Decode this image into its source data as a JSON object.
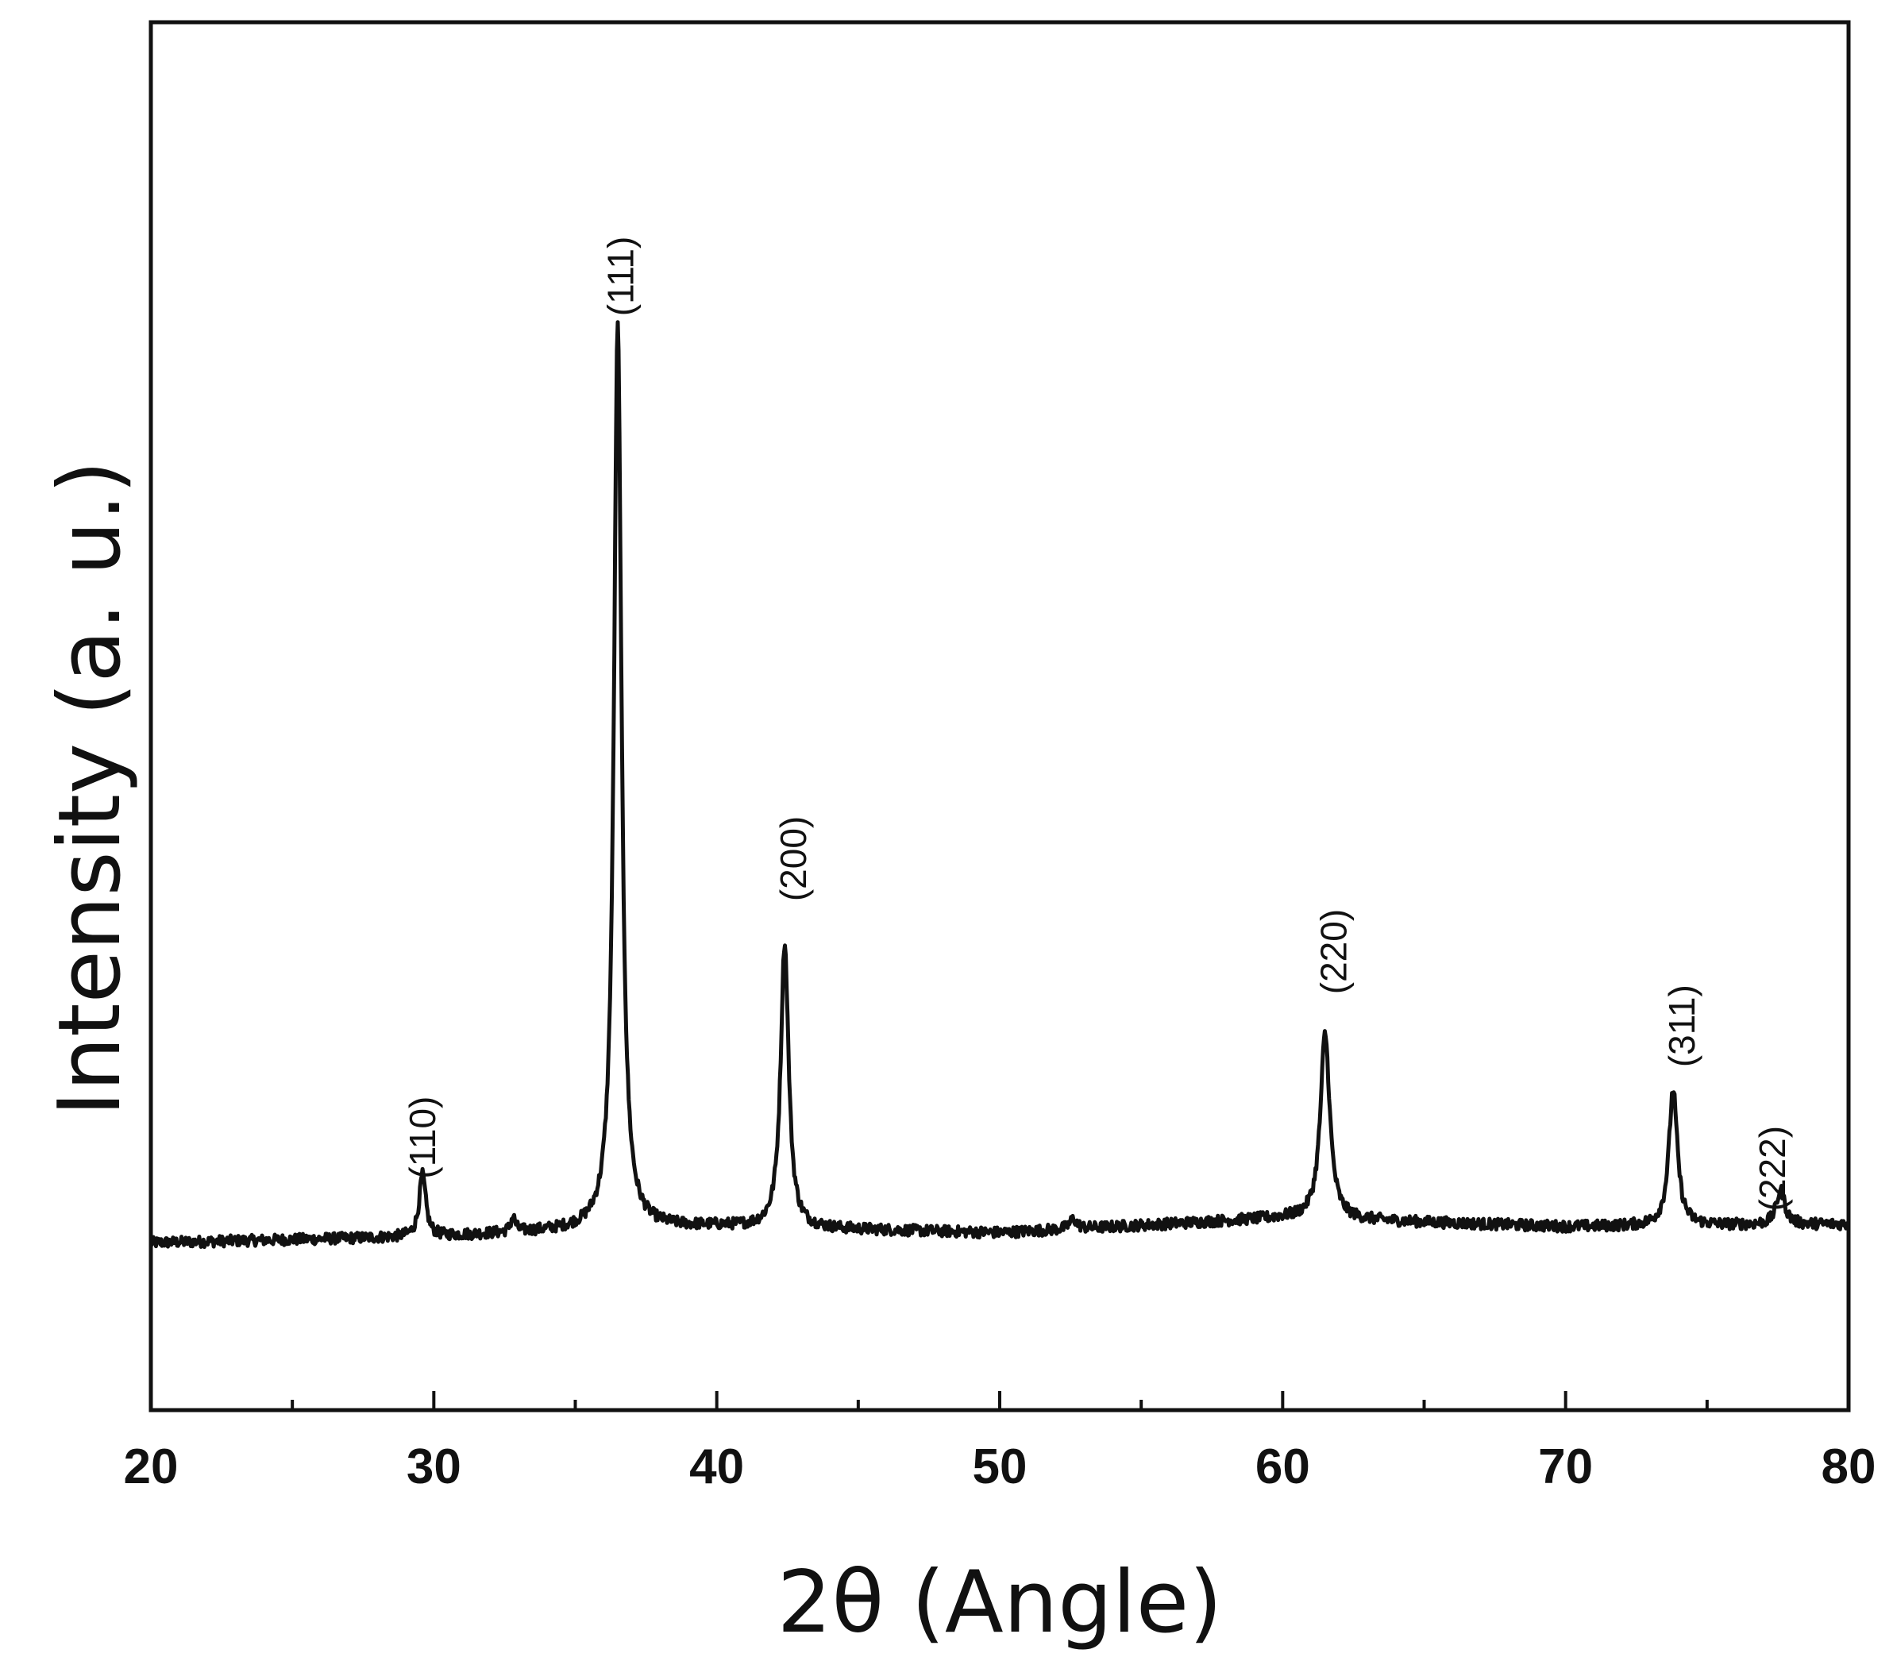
{
  "chart_data": {
    "type": "line",
    "title": "",
    "xlabel": "2θ (Angle)",
    "ylabel": "Intensity (a. u.)",
    "xlim": [
      20,
      80
    ],
    "ylim": [
      -10,
      102
    ],
    "x_ticks": [
      20,
      30,
      40,
      50,
      60,
      70,
      80
    ],
    "x_tick_labels": [
      "20",
      "30",
      "40",
      "50",
      "60",
      "70",
      "80"
    ],
    "x_minor_ticks": [
      25,
      35,
      45,
      55,
      65,
      75
    ],
    "y_ticks": [],
    "grid": false,
    "legend": "none",
    "line_color": "#111111",
    "series": [
      {
        "baseline": [
          [
            20,
            3.5
          ],
          [
            30,
            4.0
          ],
          [
            36,
            4.6
          ],
          [
            40,
            4.8
          ],
          [
            50,
            4.3
          ],
          [
            60,
            5.5
          ],
          [
            70,
            4.8
          ],
          [
            80,
            5.0
          ]
        ],
        "peaks": [
          {
            "x": 29.6,
            "height": 5.0,
            "width": 0.14
          },
          {
            "x": 32.8,
            "height": 1.2,
            "width": 0.1
          },
          {
            "x": 36.5,
            "height": 73.0,
            "width": 0.16
          },
          {
            "x": 42.4,
            "height": 23.0,
            "width": 0.17
          },
          {
            "x": 52.6,
            "height": 0.8,
            "width": 0.15
          },
          {
            "x": 61.5,
            "height": 15.0,
            "width": 0.2
          },
          {
            "x": 73.8,
            "height": 11.0,
            "width": 0.18
          },
          {
            "x": 77.6,
            "height": 2.8,
            "width": 0.18
          }
        ]
      }
    ],
    "annotations": [
      {
        "text": "(110)",
        "x": 29.6,
        "y": 12
      },
      {
        "text": "(111)",
        "x": 36.6,
        "y": 81.5
      },
      {
        "text": "(200)",
        "x": 42.7,
        "y": 34.5
      },
      {
        "text": "(220)",
        "x": 61.8,
        "y": 27
      },
      {
        "text": "(311)",
        "x": 74.1,
        "y": 21
      },
      {
        "text": "(222)",
        "x": 77.3,
        "y": 9.5
      }
    ]
  }
}
